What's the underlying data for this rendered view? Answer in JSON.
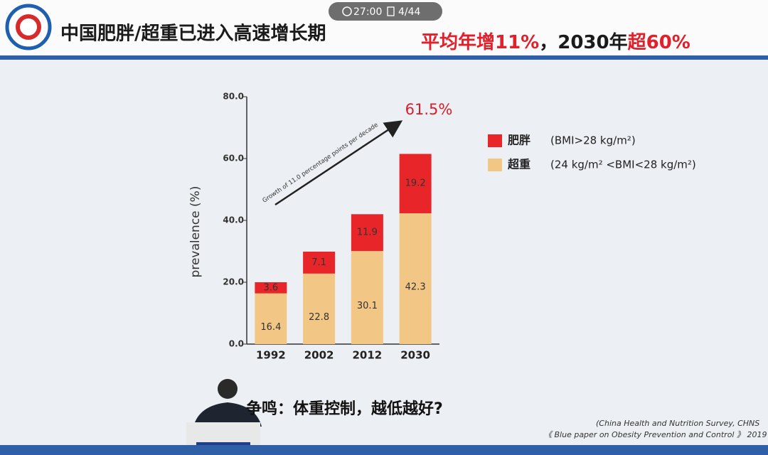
{
  "timer": "27:00",
  "page": "4/44",
  "header": {
    "title": "中国肥胖/超重已进入高速增长期",
    "headline": [
      {
        "text": "平均年增11%",
        "color": "#e0202a"
      },
      {
        "text": "，2030年",
        "color": "#1a1a1a"
      },
      {
        "text": "超60%",
        "color": "#e0202a"
      }
    ]
  },
  "chart_data": {
    "type": "stacked-bar",
    "ylabel": "prevalence (%)",
    "categories": [
      "1992",
      "2002",
      "2012",
      "2030"
    ],
    "series": [
      {
        "name": "超重",
        "definition": "(24 kg/m² <BMI<28 kg/m²)",
        "color": "#f2c684",
        "values": [
          16.4,
          22.8,
          30.1,
          42.3
        ]
      },
      {
        "name": "肥胖",
        "definition": "(BMI>28 kg/m²)",
        "color": "#e8262a",
        "values": [
          3.6,
          7.1,
          11.9,
          19.2
        ]
      }
    ],
    "ylim": [
      0,
      80
    ],
    "yticks": [
      {
        "value": 0,
        "label": "0.0"
      },
      {
        "value": 20,
        "label": "20.0"
      },
      {
        "value": 40,
        "label": "40.0"
      },
      {
        "value": 60,
        "label": "60.0"
      },
      {
        "value": 80,
        "label": "80.0"
      }
    ],
    "annotations": {
      "arrow": "Growth of 11.0 percentage points per decade",
      "total": "61.5%"
    }
  },
  "footer": {
    "question": "争鸣：体重控制，越低越好?",
    "sources": [
      "(China Health and Nutrition Survey, CHNS",
      "《 Blue paper on Obesity Prevention and Control 》 2019"
    ]
  }
}
